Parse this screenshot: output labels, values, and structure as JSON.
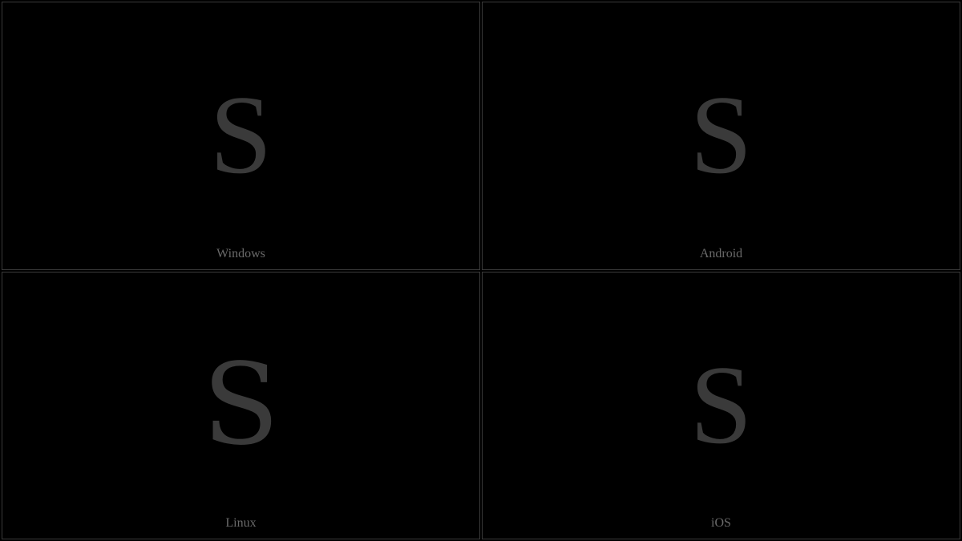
{
  "panels": [
    {
      "glyph": "S",
      "label": "Windows",
      "font_class": "windows"
    },
    {
      "glyph": "S",
      "label": "Android",
      "font_class": "android"
    },
    {
      "glyph": "S",
      "label": "Linux",
      "font_class": "linux"
    },
    {
      "glyph": "S",
      "label": "iOS",
      "font_class": "ios"
    }
  ],
  "colors": {
    "background": "#000000",
    "border": "#3a3a3a",
    "glyph": "#3a3a3a",
    "label": "#6a6a6a"
  },
  "glyph_fontsize": 140,
  "label_fontsize": 16
}
